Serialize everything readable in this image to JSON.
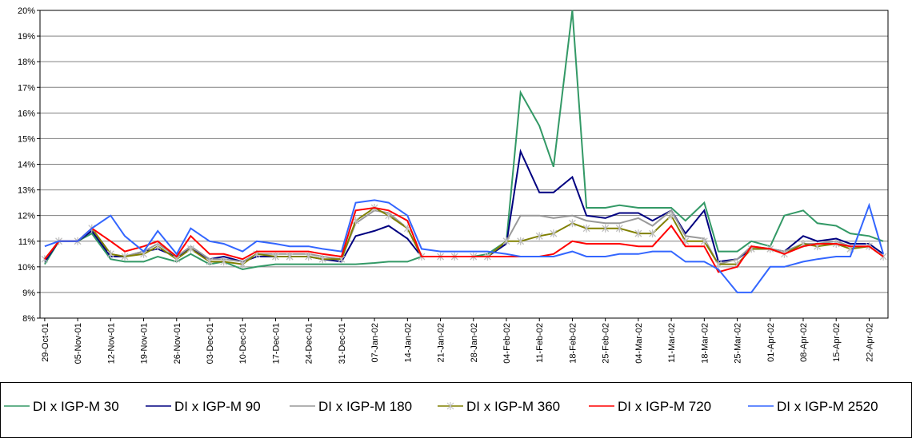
{
  "chart_data": {
    "type": "line",
    "x": [
      "29-Oct-01",
      "01-Nov-01",
      "05-Nov-01",
      "08-Nov-01",
      "12-Nov-01",
      "15-Nov-01",
      "19-Nov-01",
      "22-Nov-01",
      "26-Nov-01",
      "29-Nov-01",
      "03-Dec-01",
      "06-Dec-01",
      "10-Dec-01",
      "13-Dec-01",
      "17-Dec-01",
      "20-Dec-01",
      "24-Dec-01",
      "27-Dec-01",
      "31-Dec-01",
      "03-Jan-02",
      "07-Jan-02",
      "10-Jan-02",
      "14-Jan-02",
      "17-Jan-02",
      "21-Jan-02",
      "24-Jan-02",
      "28-Jan-02",
      "31-Jan-02",
      "04-Feb-02",
      "07-Feb-02",
      "11-Feb-02",
      "14-Feb-02",
      "18-Feb-02",
      "21-Feb-02",
      "25-Feb-02",
      "28-Feb-02",
      "04-Mar-02",
      "07-Mar-02",
      "11-Mar-02",
      "14-Mar-02",
      "18-Mar-02",
      "21-Mar-02",
      "25-Mar-02",
      "28-Mar-02",
      "01-Apr-02",
      "04-Apr-02",
      "08-Apr-02",
      "11-Apr-02",
      "15-Apr-02",
      "18-Apr-02",
      "22-Apr-02",
      "25-Apr-02"
    ],
    "series": [
      {
        "name": "DI x IGP-M 30",
        "color": "#339966",
        "values": [
          10.1,
          11,
          11,
          11.3,
          10.3,
          10.2,
          10.2,
          10.4,
          10.2,
          10.5,
          10.1,
          10.2,
          9.9,
          10.0,
          10.1,
          10.1,
          10.1,
          10.1,
          10.1,
          10.1,
          10.15,
          10.2,
          10.2,
          10.4,
          10.4,
          10.4,
          10.4,
          10.5,
          11,
          16.8,
          15.5,
          13.9,
          20,
          12.3,
          12.3,
          12.4,
          12.3,
          12.3,
          12.3,
          11.8,
          12.5,
          10.6,
          10.6,
          11.0,
          10.8,
          12.0,
          12.2,
          11.7,
          11.6,
          11.3,
          11.2,
          11.0
        ]
      },
      {
        "name": "DI x IGP-M 90",
        "color": "#000080",
        "values": [
          10.2,
          11,
          11,
          11.4,
          10.4,
          10.4,
          10.6,
          10.7,
          10.4,
          10.7,
          10.3,
          10.4,
          10.2,
          10.4,
          10.4,
          10.4,
          10.4,
          10.3,
          10.2,
          11.2,
          11.4,
          11.6,
          11.1,
          10.4,
          10.4,
          10.4,
          10.4,
          10.4,
          10.9,
          14.5,
          12.9,
          12.9,
          13.5,
          12.0,
          11.9,
          12.1,
          12.1,
          11.8,
          12.2,
          11.3,
          12.2,
          10.2,
          10.3,
          10.7,
          10.7,
          10.6,
          11.2,
          11.0,
          11.1,
          10.9,
          10.9,
          10.5
        ]
      },
      {
        "name": "DI x IGP-M 180",
        "color": "#999999",
        "values": [
          10.3,
          11,
          11,
          11.5,
          10.5,
          10.4,
          10.6,
          10.9,
          10.4,
          10.8,
          10.3,
          10.3,
          10.2,
          10.5,
          10.5,
          10.5,
          10.5,
          10.4,
          10.3,
          11.7,
          12.2,
          12.1,
          11.5,
          10.4,
          10.4,
          10.4,
          10.4,
          10.4,
          11.0,
          12.0,
          12.0,
          11.9,
          12.0,
          11.8,
          11.7,
          11.7,
          11.9,
          11.6,
          12.2,
          11.2,
          11.1,
          10.1,
          10.3,
          10.8,
          10.7,
          10.6,
          10.9,
          10.9,
          11.0,
          10.8,
          10.8,
          10.4
        ]
      },
      {
        "name": "DI x IGP-M 360",
        "color": "#808000",
        "marker": "star",
        "values": [
          10.3,
          11,
          11,
          11.5,
          10.5,
          10.4,
          10.5,
          10.8,
          10.3,
          10.7,
          10.2,
          10.2,
          10.1,
          10.5,
          10.4,
          10.4,
          10.4,
          10.3,
          10.3,
          11.8,
          12.3,
          12.0,
          11.5,
          10.4,
          10.4,
          10.4,
          10.4,
          10.4,
          11.0,
          11.0,
          11.2,
          11.3,
          11.7,
          11.5,
          11.5,
          11.5,
          11.3,
          11.3,
          12.0,
          11.0,
          11.0,
          10.1,
          10.1,
          10.7,
          10.7,
          10.5,
          10.9,
          10.8,
          10.9,
          10.7,
          10.8,
          10.4
        ]
      },
      {
        "name": "DI x IGP-M 720",
        "color": "#ff0000",
        "values": [
          10.3,
          11,
          11,
          11.5,
          11.0,
          10.6,
          10.8,
          11.0,
          10.4,
          11.2,
          10.5,
          10.5,
          10.3,
          10.6,
          10.6,
          10.6,
          10.6,
          10.5,
          10.4,
          12.2,
          12.3,
          12.2,
          11.8,
          10.4,
          10.4,
          10.4,
          10.4,
          10.4,
          10.4,
          10.4,
          10.4,
          10.5,
          11.0,
          10.9,
          10.9,
          10.9,
          10.8,
          10.8,
          11.6,
          10.8,
          10.8,
          9.8,
          10.0,
          10.8,
          10.7,
          10.5,
          10.8,
          10.9,
          10.9,
          10.8,
          10.8,
          10.4
        ]
      },
      {
        "name": "DI x IGP-M 2520",
        "color": "#3366ff",
        "values": [
          10.8,
          11,
          11,
          11.5,
          12.0,
          11.2,
          10.6,
          11.4,
          10.5,
          11.5,
          11.0,
          10.9,
          10.6,
          11.0,
          10.9,
          10.8,
          10.8,
          10.7,
          10.6,
          12.5,
          12.6,
          12.5,
          12.0,
          10.7,
          10.6,
          10.6,
          10.6,
          10.6,
          10.5,
          10.4,
          10.4,
          10.4,
          10.6,
          10.4,
          10.4,
          10.5,
          10.5,
          10.6,
          10.6,
          10.2,
          10.2,
          9.9,
          9.0,
          9.0,
          10.0,
          10.0,
          10.2,
          10.3,
          10.4,
          10.4,
          12.4,
          10.5
        ]
      }
    ],
    "xlim": [
      "28-Oct-01",
      "26-Apr-02"
    ],
    "xticks": [
      "29-Oct-01",
      "05-Nov-01",
      "12-Nov-01",
      "19-Nov-01",
      "26-Nov-01",
      "03-Dec-01",
      "10-Dec-01",
      "17-Dec-01",
      "24-Dec-01",
      "31-Dec-01",
      "07-Jan-02",
      "14-Jan-02",
      "21-Jan-02",
      "28-Jan-02",
      "04-Feb-02",
      "11-Feb-02",
      "18-Feb-02",
      "25-Feb-02",
      "04-Mar-02",
      "11-Mar-02",
      "18-Mar-02",
      "25-Mar-02",
      "01-Apr-02",
      "08-Apr-02",
      "15-Apr-02",
      "22-Apr-02"
    ],
    "ylim": [
      8,
      20
    ],
    "yticks": [
      {
        "value": 8,
        "label": "8%"
      },
      {
        "value": 9,
        "label": "9%"
      },
      {
        "value": 10,
        "label": "10%"
      },
      {
        "value": 11,
        "label": "11%"
      },
      {
        "value": 12,
        "label": "12%"
      },
      {
        "value": 13,
        "label": "13%"
      },
      {
        "value": 14,
        "label": "14%"
      },
      {
        "value": 15,
        "label": "15%"
      },
      {
        "value": 16,
        "label": "16%"
      },
      {
        "value": 17,
        "label": "17%"
      },
      {
        "value": 18,
        "label": "18%"
      },
      {
        "value": 19,
        "label": "19%"
      },
      {
        "value": 20,
        "label": "20%"
      }
    ],
    "grid": true,
    "legend": "bottom"
  }
}
